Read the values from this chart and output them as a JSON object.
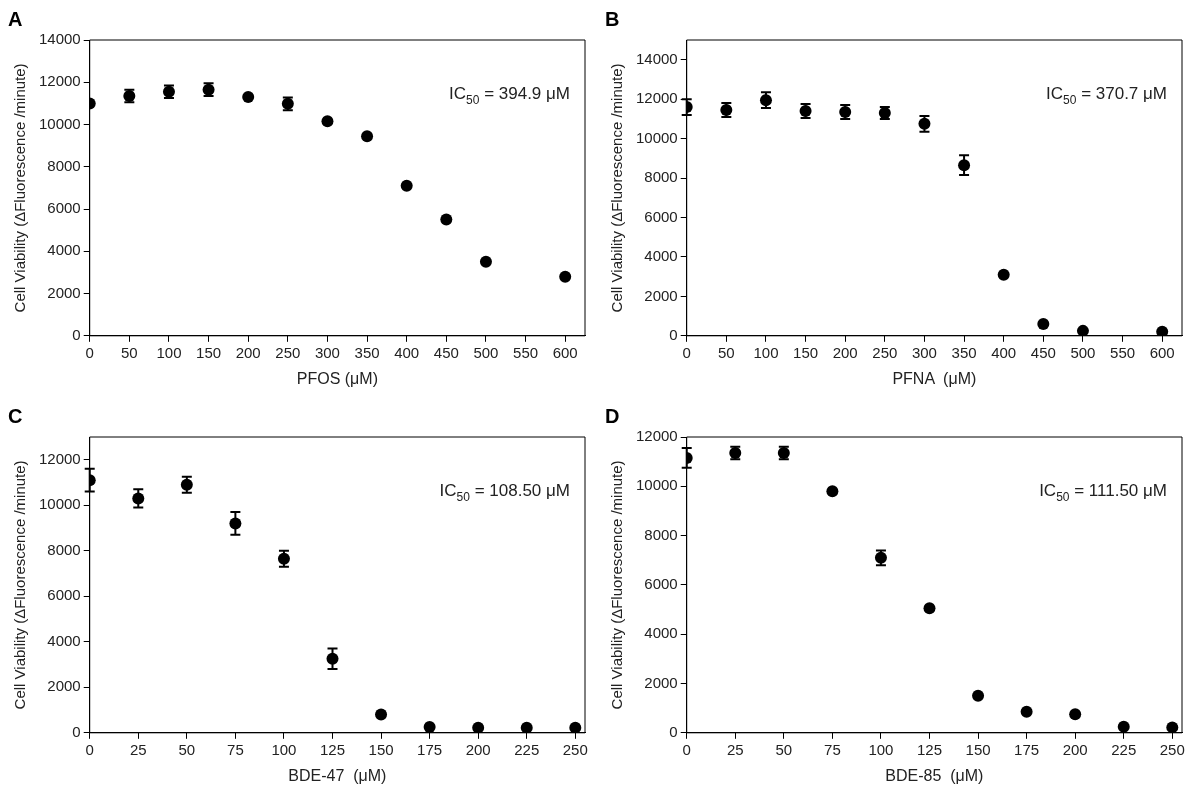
{
  "chart_data": [
    {
      "type": "scatter",
      "title": "A",
      "xlabel": "PFOS (μM)",
      "ylabel": "Cell Viability (ΔFluorescence /minute)",
      "annotations": [
        "IC$_{50}$ = 394.9 μM"
      ],
      "marker": "circle",
      "x": [
        0,
        50,
        100,
        150,
        200,
        250,
        300,
        350,
        400,
        450,
        500,
        600
      ],
      "series": [
        {
          "color": "#000000",
          "values": [
            11000,
            11350,
            11550,
            11650,
            11300,
            10980,
            10150,
            9450,
            7100,
            5500,
            3500,
            2800
          ],
          "errors": [
            null,
            300,
            300,
            300,
            null,
            300,
            null,
            null,
            null,
            null,
            null,
            null
          ]
        }
      ],
      "xlim": [
        0,
        625
      ],
      "xticks": [
        0,
        50,
        100,
        150,
        200,
        250,
        300,
        350,
        400,
        450,
        500,
        550,
        600
      ],
      "ylim": [
        0,
        14000
      ],
      "yticks": [
        0,
        2000,
        4000,
        6000,
        8000,
        10000,
        12000,
        14000
      ]
    },
    {
      "type": "scatter",
      "title": "B",
      "xlabel": "PFNA  (μM)",
      "ylabel": "Cell Viability (ΔFluorescence /minute)",
      "annotations": [
        "IC$_{50}$ = 370.7 μM"
      ],
      "marker": "circle",
      "x": [
        0,
        50,
        100,
        150,
        200,
        250,
        300,
        350,
        400,
        450,
        500,
        600
      ],
      "series": [
        {
          "color": "#000000",
          "values": [
            11600,
            11450,
            11950,
            11400,
            11350,
            11300,
            10750,
            8650,
            3100,
            600,
            250,
            200
          ],
          "errors": [
            400,
            350,
            400,
            350,
            350,
            300,
            400,
            500,
            null,
            null,
            null,
            null
          ]
        }
      ],
      "xlim": [
        0,
        625
      ],
      "xticks": [
        0,
        50,
        100,
        150,
        200,
        250,
        300,
        350,
        400,
        450,
        500,
        550,
        600
      ],
      "ylim": [
        0,
        15000
      ],
      "yticks": [
        0,
        2000,
        4000,
        6000,
        8000,
        10000,
        12000,
        14000
      ]
    },
    {
      "type": "scatter",
      "title": "C",
      "xlabel": "BDE-47  (μM)",
      "ylabel": "Cell Viability (ΔFluorescence /minute)",
      "annotations": [
        "IC$_{50}$ = 108.50 μM"
      ],
      "marker": "circle",
      "x": [
        0,
        25,
        50,
        75,
        100,
        125,
        150,
        175,
        200,
        225,
        250
      ],
      "series": [
        {
          "color": "#000000",
          "values": [
            11100,
            10300,
            10900,
            9200,
            7650,
            3250,
            800,
            250,
            220,
            220,
            220
          ],
          "errors": [
            500,
            400,
            350,
            500,
            350,
            450,
            null,
            null,
            null,
            null,
            null
          ]
        }
      ],
      "xlim": [
        0,
        255
      ],
      "xticks": [
        0,
        25,
        50,
        75,
        100,
        125,
        150,
        175,
        200,
        225,
        250
      ],
      "ylim": [
        0,
        13000
      ],
      "yticks": [
        0,
        2000,
        4000,
        6000,
        8000,
        10000,
        12000
      ]
    },
    {
      "type": "scatter",
      "title": "D",
      "xlabel": "BDE-85  (μM)",
      "ylabel": "Cell Viability (ΔFluorescence /minute)",
      "annotations": [
        "IC$_{50}$ = 111.50 μM"
      ],
      "marker": "circle",
      "x": [
        0,
        25,
        50,
        75,
        100,
        125,
        150,
        175,
        200,
        225,
        250
      ],
      "series": [
        {
          "color": "#000000",
          "values": [
            11150,
            11350,
            11350,
            9800,
            7100,
            5050,
            1500,
            850,
            750,
            250,
            220
          ],
          "errors": [
            400,
            250,
            250,
            null,
            300,
            null,
            null,
            null,
            null,
            null,
            null
          ]
        }
      ],
      "xlim": [
        0,
        255
      ],
      "xticks": [
        0,
        25,
        50,
        75,
        100,
        125,
        150,
        175,
        200,
        225,
        250
      ],
      "ylim": [
        0,
        12000
      ],
      "yticks": [
        0,
        2000,
        4000,
        6000,
        8000,
        10000,
        12000
      ]
    }
  ]
}
